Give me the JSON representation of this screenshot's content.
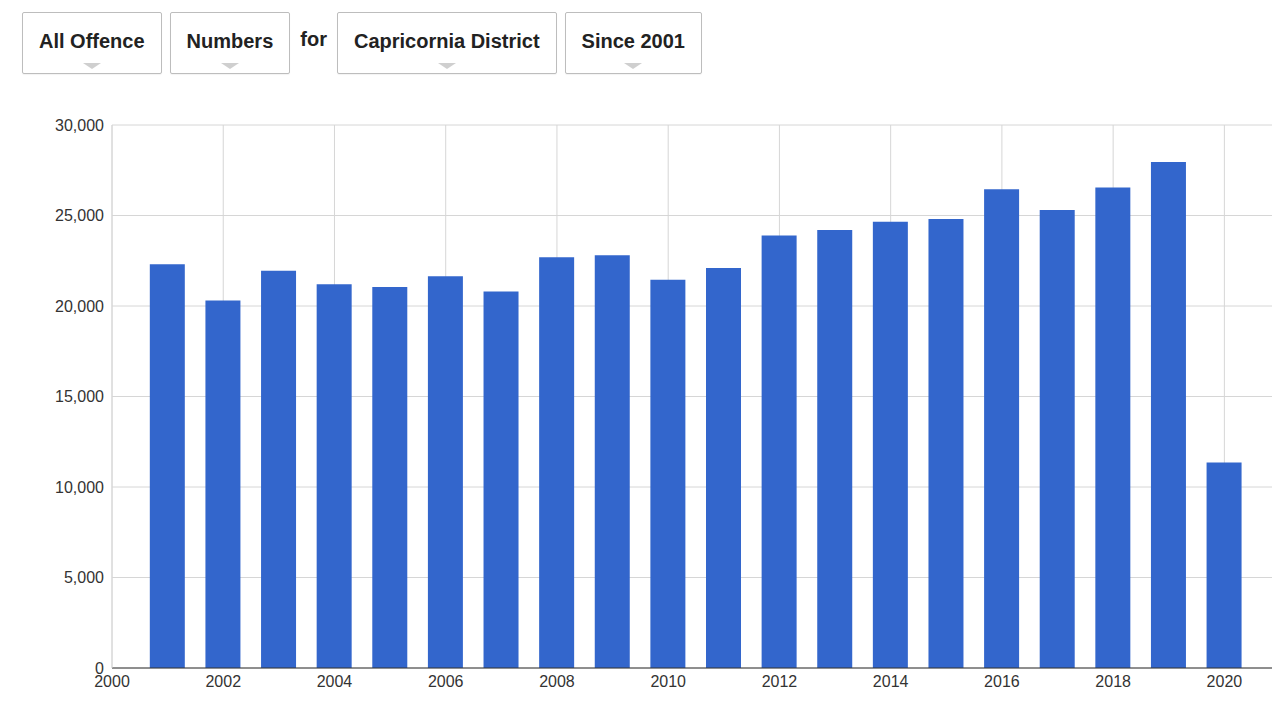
{
  "header": {
    "buttons_before": [
      "All Offence",
      "Numbers"
    ],
    "connector": "for",
    "buttons_after": [
      "Capricornia District",
      "Since 2001"
    ]
  },
  "chart_data": {
    "type": "bar",
    "x": [
      2001,
      2002,
      2003,
      2004,
      2005,
      2006,
      2007,
      2008,
      2009,
      2010,
      2011,
      2012,
      2013,
      2014,
      2015,
      2016,
      2017,
      2018,
      2019,
      2020
    ],
    "values": [
      22300,
      20300,
      21950,
      21200,
      21050,
      21650,
      20800,
      22700,
      22800,
      21450,
      22100,
      23900,
      24200,
      24650,
      24800,
      26450,
      25300,
      26550,
      27950,
      11350
    ],
    "color": "#3366cc",
    "xlim": [
      2000,
      2021
    ],
    "xticks": [
      2000,
      2002,
      2004,
      2006,
      2008,
      2010,
      2012,
      2014,
      2016,
      2018,
      2020
    ],
    "ylim": [
      0,
      30000
    ],
    "yticks": [
      0,
      {
        "value": 5000,
        "label": "5,000"
      },
      {
        "value": 10000,
        "label": "10,000"
      },
      {
        "value": 15000,
        "label": "15,000"
      },
      {
        "value": 20000,
        "label": "20,000"
      },
      {
        "value": 25000,
        "label": "25,000"
      },
      {
        "value": 30000,
        "label": "30,000"
      }
    ],
    "grid": true
  }
}
